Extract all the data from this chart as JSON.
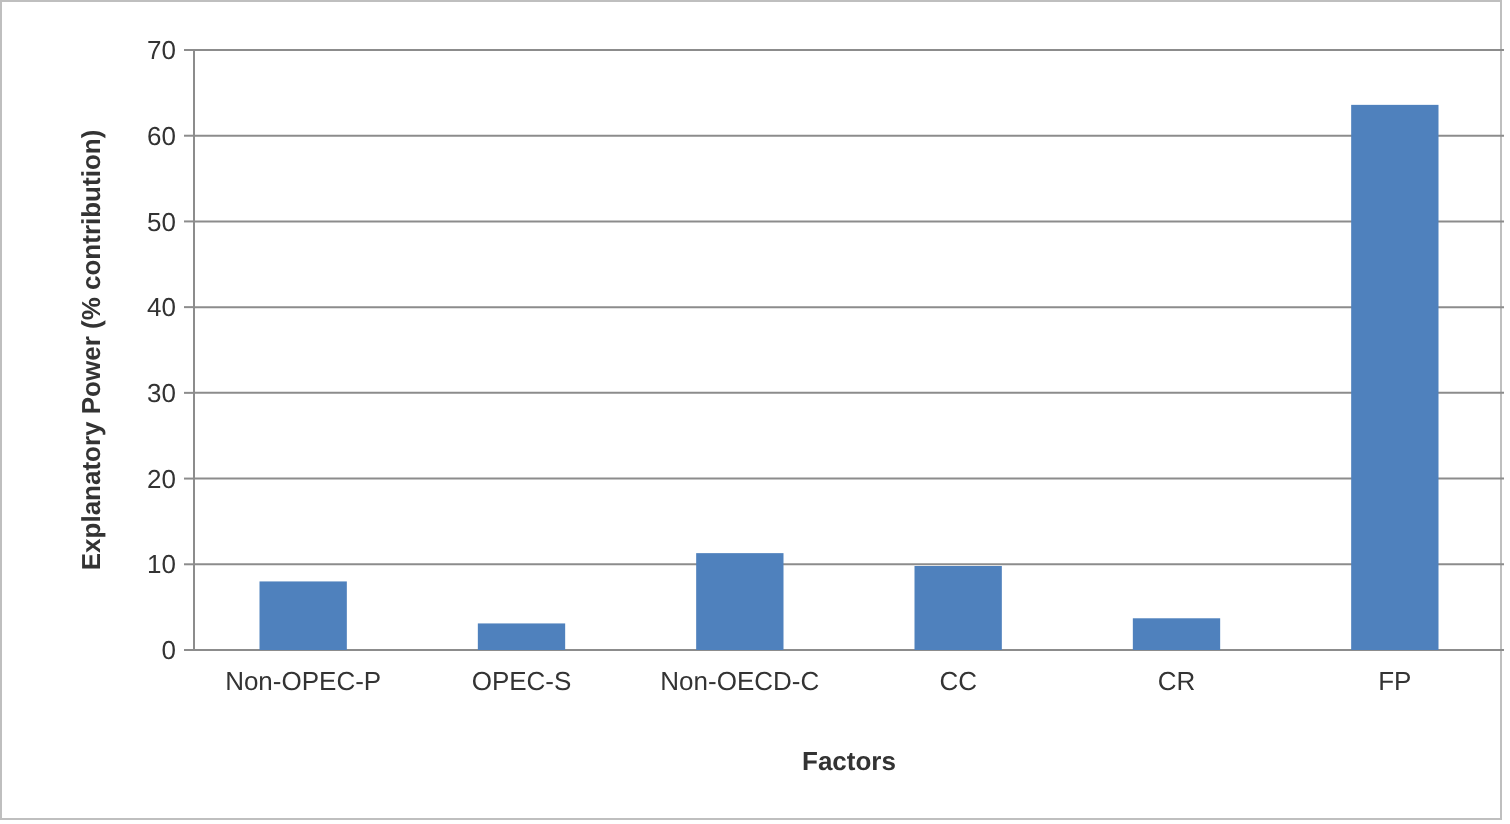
{
  "chart_data": {
    "type": "bar",
    "xlabel": "Factors",
    "ylabel": "Explanatory Power (% contribution)",
    "categories": [
      "Non-OPEC-P",
      "OPEC-S",
      "Non-OECD-C",
      "CC",
      "CR",
      "FP"
    ],
    "values": [
      8.0,
      3.1,
      11.3,
      9.8,
      3.7,
      63.6
    ],
    "color": "#4f81bd",
    "ylim": [
      0,
      70
    ],
    "yticks": [
      0,
      10,
      20,
      30,
      40,
      50,
      60,
      70
    ],
    "grid": "y"
  }
}
